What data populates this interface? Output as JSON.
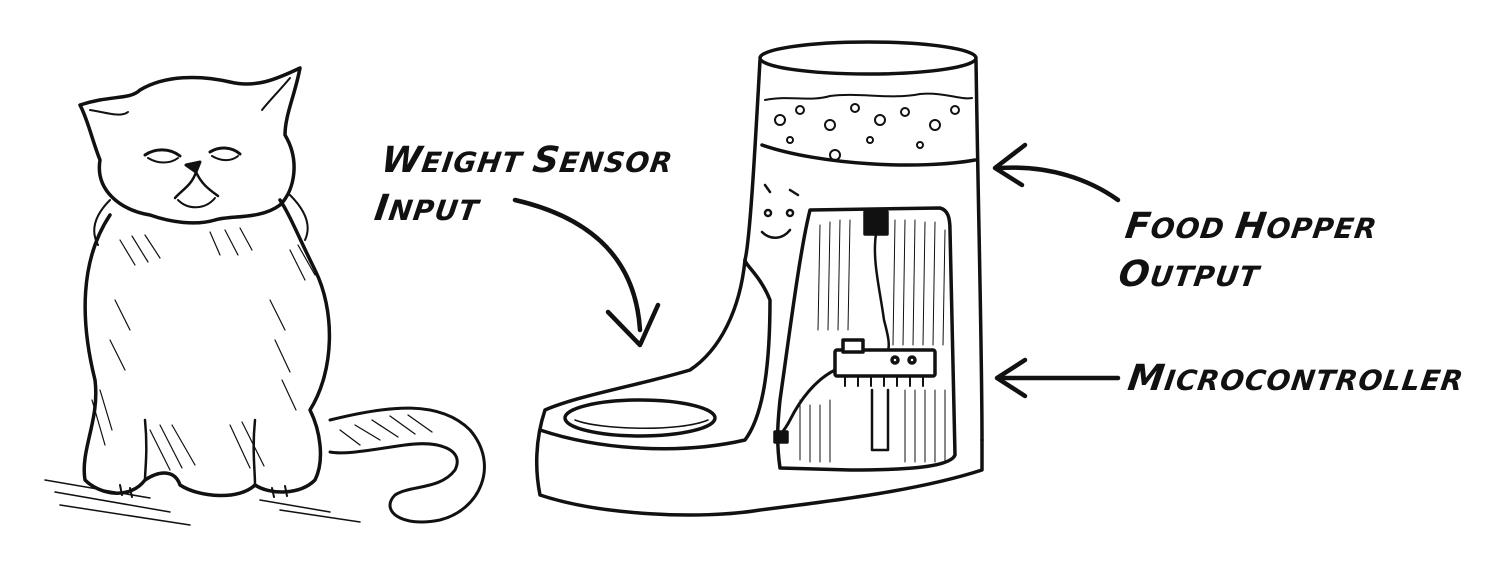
{
  "labels": {
    "weight_sensor": {
      "line1_big": "W",
      "line1_rest": "EIGHT ",
      "line1_big2": "S",
      "line1_rest2": "ENSOR",
      "line2_big": "I",
      "line2_rest": "NPUT"
    },
    "food_hopper": {
      "line1_big": "F",
      "line1_rest": "OOD ",
      "line1_big2": "H",
      "line1_rest2": "OPPER",
      "line2_big": "O",
      "line2_rest": "UTPUT"
    },
    "microcontroller": {
      "big": "M",
      "rest": "ICROCONTROLLER"
    }
  },
  "colors": {
    "ink": "#111111",
    "paper": "#ffffff",
    "shade": "#222222"
  }
}
